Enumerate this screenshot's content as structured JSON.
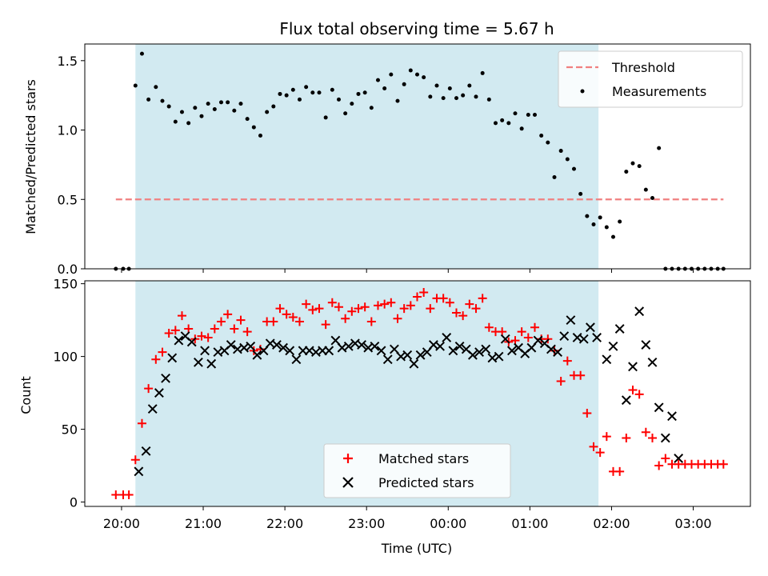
{
  "chart_data": {
    "type": "scatter",
    "title": "Flux total observing time = 5.67 h",
    "xlabel": "Time (UTC)",
    "x_unit": "hours after 20:00 UTC (20:00 = 0, 00:00 = 4, 03:00 = 7)",
    "x_ticks": [
      {
        "x": 0,
        "label": "20:00"
      },
      {
        "x": 1,
        "label": "21:00"
      },
      {
        "x": 2,
        "label": "22:00"
      },
      {
        "x": 3,
        "label": "23:00"
      },
      {
        "x": 4,
        "label": "00:00"
      },
      {
        "x": 5,
        "label": "01:00"
      },
      {
        "x": 6,
        "label": "02:00"
      },
      {
        "x": 7,
        "label": "03:00"
      }
    ],
    "xlim": [
      -0.45,
      7.7
    ],
    "observing_window": [
      0.17,
      5.84
    ],
    "observing_window_color": "#add8e6",
    "top": {
      "ylabel": "Matched/Predicted stars",
      "ylim": [
        0,
        1.62
      ],
      "yticks": [
        0,
        0.5,
        1.0,
        1.5
      ],
      "ytick_labels": [
        "0.0",
        "0.5",
        "1.0",
        "1.5"
      ],
      "legend": [
        "Threshold",
        "Measurements"
      ],
      "legend_position": "upper right",
      "threshold": {
        "value": 0.5,
        "x_range": [
          -0.07,
          7.37
        ],
        "color": "#f08080",
        "style": "dashed"
      },
      "measurements": {
        "color": "#000000",
        "x": [
          -0.07,
          0.02,
          0.09,
          0.17,
          0.25,
          0.33,
          0.42,
          0.5,
          0.58,
          0.66,
          0.74,
          0.82,
          0.9,
          0.98,
          1.06,
          1.14,
          1.22,
          1.3,
          1.38,
          1.46,
          1.54,
          1.62,
          1.7,
          1.78,
          1.86,
          1.94,
          2.02,
          2.1,
          2.18,
          2.26,
          2.34,
          2.42,
          2.5,
          2.58,
          2.66,
          2.74,
          2.82,
          2.9,
          2.98,
          3.06,
          3.14,
          3.22,
          3.3,
          3.38,
          3.46,
          3.54,
          3.62,
          3.7,
          3.78,
          3.86,
          3.94,
          4.02,
          4.1,
          4.18,
          4.26,
          4.34,
          4.42,
          4.5,
          4.58,
          4.66,
          4.74,
          4.82,
          4.9,
          4.98,
          5.06,
          5.14,
          5.22,
          5.3,
          5.38,
          5.46,
          5.54,
          5.62,
          5.7,
          5.78,
          5.86,
          5.94,
          6.02,
          6.1,
          6.18,
          6.26,
          6.34,
          6.42,
          6.5,
          6.58,
          6.66,
          6.74,
          6.82,
          6.9,
          6.98,
          7.06,
          7.14,
          7.22,
          7.3,
          7.37
        ],
        "y": [
          0,
          0,
          0,
          1.32,
          1.55,
          1.22,
          1.31,
          1.21,
          1.17,
          1.06,
          1.13,
          1.05,
          1.16,
          1.1,
          1.19,
          1.15,
          1.2,
          1.2,
          1.14,
          1.19,
          1.08,
          1.02,
          0.96,
          1.13,
          1.17,
          1.26,
          1.25,
          1.29,
          1.22,
          1.31,
          1.27,
          1.27,
          1.09,
          1.29,
          1.22,
          1.12,
          1.19,
          1.26,
          1.27,
          1.16,
          1.36,
          1.3,
          1.4,
          1.21,
          1.33,
          1.43,
          1.4,
          1.38,
          1.24,
          1.32,
          1.23,
          1.3,
          1.23,
          1.25,
          1.32,
          1.24,
          1.41,
          1.22,
          1.05,
          1.07,
          1.05,
          1.12,
          1.01,
          1.11,
          1.11,
          0.96,
          0.91,
          0.66,
          0.85,
          0.79,
          0.72,
          0.54,
          0.38,
          0.32,
          0.37,
          0.3,
          0.23,
          0.34,
          0.7,
          0.76,
          0.74,
          0.57,
          0.51,
          0.87,
          0,
          0,
          0,
          0,
          0,
          0,
          0,
          0,
          0,
          0
        ]
      }
    },
    "bottom": {
      "ylabel": "Count",
      "ylim": [
        -3,
        152
      ],
      "yticks": [
        0,
        50,
        100,
        150
      ],
      "ytick_labels": [
        "0",
        "50",
        "100",
        "150"
      ],
      "legend": [
        "Matched stars",
        "Predicted stars"
      ],
      "legend_position": "lower center",
      "matched": {
        "color": "#ff0000",
        "marker": "+",
        "x": [
          -0.07,
          0.02,
          0.09,
          0.17,
          0.25,
          0.33,
          0.42,
          0.5,
          0.58,
          0.66,
          0.74,
          0.82,
          0.9,
          0.98,
          1.06,
          1.14,
          1.22,
          1.3,
          1.38,
          1.46,
          1.54,
          1.62,
          1.7,
          1.78,
          1.86,
          1.94,
          2.02,
          2.1,
          2.18,
          2.26,
          2.34,
          2.42,
          2.5,
          2.58,
          2.66,
          2.74,
          2.82,
          2.9,
          2.98,
          3.06,
          3.14,
          3.22,
          3.3,
          3.38,
          3.46,
          3.54,
          3.62,
          3.7,
          3.78,
          3.86,
          3.94,
          4.02,
          4.1,
          4.18,
          4.26,
          4.34,
          4.42,
          4.5,
          4.58,
          4.66,
          4.74,
          4.82,
          4.9,
          4.98,
          5.06,
          5.14,
          5.22,
          5.3,
          5.38,
          5.46,
          5.54,
          5.62,
          5.7,
          5.78,
          5.86,
          5.94,
          6.02,
          6.1,
          6.18,
          6.26,
          6.34,
          6.42,
          6.5,
          6.58,
          6.66,
          6.74,
          6.82,
          6.9,
          6.98,
          7.06,
          7.14,
          7.22,
          7.3,
          7.37
        ],
        "y": [
          5,
          5,
          5,
          29,
          54,
          78,
          98,
          103,
          116,
          118,
          128,
          119,
          112,
          114,
          113,
          119,
          124,
          129,
          119,
          125,
          117,
          104,
          105,
          124,
          124,
          133,
          129,
          127,
          124,
          136,
          132,
          133,
          122,
          137,
          134,
          126,
          131,
          133,
          134,
          124,
          135,
          136,
          137,
          126,
          133,
          135,
          141,
          144,
          133,
          140,
          140,
          137,
          130,
          128,
          136,
          133,
          140,
          120,
          117,
          117,
          110,
          111,
          117,
          113,
          120,
          112,
          112,
          104,
          83,
          97,
          87,
          87,
          61,
          38,
          34,
          45,
          21,
          21,
          44,
          77,
          74,
          48,
          44,
          25,
          30,
          26,
          26,
          26,
          26,
          26,
          26,
          26,
          26,
          26
        ]
      },
      "predicted": {
        "color": "#000000",
        "marker": "x",
        "x": [
          0.21,
          0.3,
          0.38,
          0.46,
          0.54,
          0.62,
          0.7,
          0.78,
          0.86,
          0.94,
          1.02,
          1.1,
          1.18,
          1.26,
          1.34,
          1.42,
          1.5,
          1.58,
          1.66,
          1.74,
          1.82,
          1.9,
          1.98,
          2.06,
          2.14,
          2.22,
          2.3,
          2.38,
          2.46,
          2.54,
          2.62,
          2.7,
          2.78,
          2.86,
          2.94,
          3.02,
          3.1,
          3.18,
          3.26,
          3.34,
          3.42,
          3.5,
          3.58,
          3.66,
          3.74,
          3.82,
          3.9,
          3.98,
          4.06,
          4.14,
          4.22,
          4.3,
          4.38,
          4.46,
          4.54,
          4.62,
          4.7,
          4.78,
          4.86,
          4.94,
          5.02,
          5.1,
          5.18,
          5.26,
          5.34,
          5.42,
          5.5,
          5.58,
          5.66,
          5.74,
          5.82,
          5.94,
          6.02,
          6.1,
          6.18,
          6.26,
          6.34,
          6.42,
          6.5,
          6.58,
          6.66,
          6.74,
          6.82
        ],
        "y": [
          21,
          35,
          64,
          75,
          85,
          99,
          111,
          114,
          110,
          96,
          104,
          95,
          103,
          104,
          108,
          105,
          106,
          107,
          101,
          104,
          109,
          108,
          106,
          104,
          98,
          104,
          104,
          103,
          104,
          104,
          111,
          106,
          107,
          109,
          108,
          106,
          107,
          104,
          98,
          105,
          100,
          101,
          95,
          101,
          103,
          108,
          107,
          113,
          104,
          107,
          105,
          101,
          103,
          105,
          99,
          100,
          112,
          104,
          106,
          102,
          106,
          111,
          109,
          105,
          103,
          114,
          125,
          113,
          112,
          120,
          113,
          98,
          107,
          119,
          70,
          93,
          131,
          108,
          96,
          65,
          44,
          59,
          30
        ]
      }
    }
  }
}
